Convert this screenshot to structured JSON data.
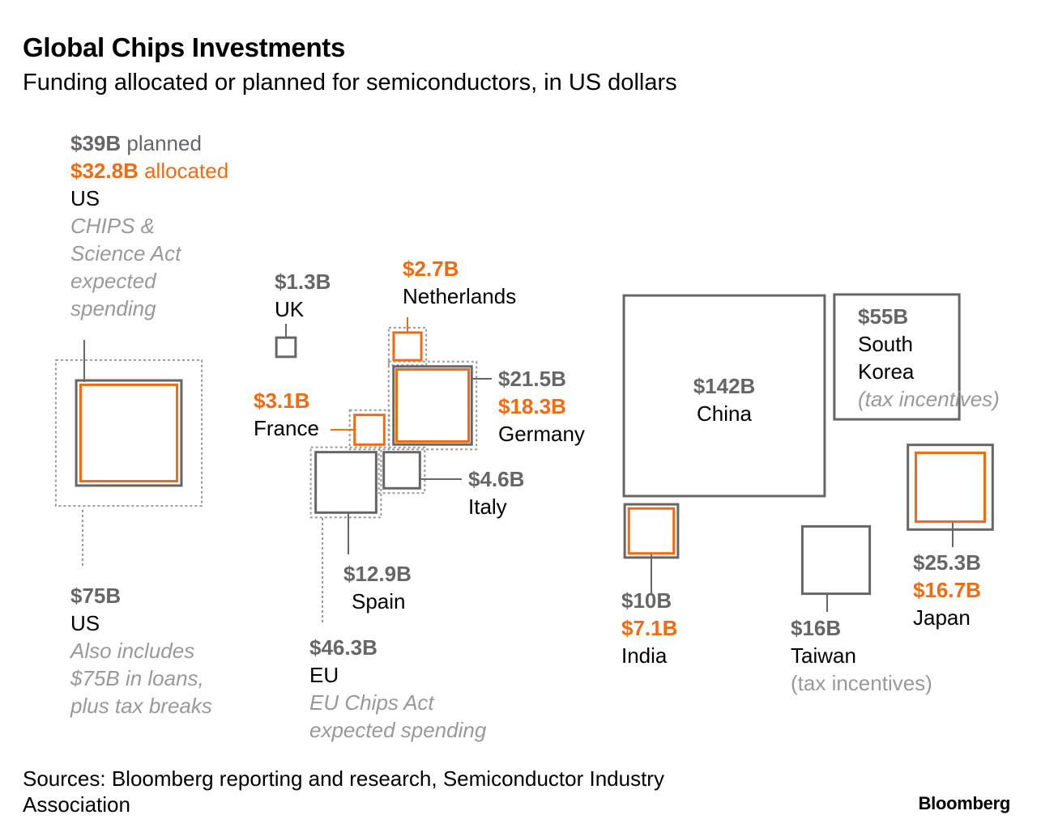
{
  "title": "Global Chips Investments",
  "subtitle": "Funding allocated or planned for semiconductors, in US dollars",
  "source": "Sources: Bloomberg reporting and research, Semiconductor Industry Association",
  "logo": "Bloomberg",
  "colors": {
    "planned": "#666666",
    "allocated": "#f36a10",
    "group": "#999999",
    "text": "#000000"
  },
  "chart_data": {
    "type": "area",
    "title": "Global Chips Investments",
    "subtitle": "Funding allocated or planned for semiconductors, in US dollars",
    "unit": "US$ billions",
    "entries": [
      {
        "id": "us",
        "country": "US",
        "planned": 39,
        "allocated": 32.8,
        "planned_label": "$39B",
        "planned_word": "planned",
        "allocated_label": "$32.8B",
        "allocated_word": "allocated",
        "note": "CHIPS & Science Act expected spending",
        "note_lines": [
          "CHIPS &",
          "Science Act",
          "expected",
          "spending"
        ]
      },
      {
        "id": "us-total",
        "country": "US",
        "total": 75,
        "label": "$75B",
        "note": "Also includes $75B in loans, plus tax breaks",
        "note_lines": [
          "Also includes",
          "$75B in loans,",
          "plus tax breaks"
        ]
      },
      {
        "id": "uk",
        "country": "UK",
        "planned": 1.3,
        "planned_label": "$1.3B"
      },
      {
        "id": "netherlands",
        "country": "Netherlands",
        "allocated": 2.7,
        "allocated_label": "$2.7B"
      },
      {
        "id": "germany",
        "country": "Germany",
        "planned": 21.5,
        "allocated": 18.3,
        "planned_label": "$21.5B",
        "allocated_label": "$18.3B"
      },
      {
        "id": "france",
        "country": "France",
        "allocated": 3.1,
        "allocated_label": "$3.1B"
      },
      {
        "id": "italy",
        "country": "Italy",
        "planned": 4.6,
        "planned_label": "$4.6B"
      },
      {
        "id": "spain",
        "country": "Spain",
        "planned": 12.9,
        "planned_label": "$12.9B"
      },
      {
        "id": "eu",
        "country": "EU",
        "total": 46.3,
        "label": "$46.3B",
        "note": "EU Chips Act expected spending",
        "note_lines": [
          "EU Chips Act",
          "expected spending"
        ]
      },
      {
        "id": "china",
        "country": "China",
        "planned": 142,
        "planned_label": "$142B"
      },
      {
        "id": "south-korea",
        "country": "South Korea",
        "planned": 55,
        "planned_label": "$55B",
        "country_lines": [
          "South",
          "Korea"
        ],
        "note": "(tax incentives)"
      },
      {
        "id": "japan",
        "country": "Japan",
        "planned": 25.3,
        "allocated": 16.7,
        "planned_label": "$25.3B",
        "allocated_label": "$16.7B"
      },
      {
        "id": "india",
        "country": "India",
        "planned": 10,
        "allocated": 7.1,
        "planned_label": "$10B",
        "allocated_label": "$7.1B"
      },
      {
        "id": "taiwan",
        "country": "Taiwan",
        "planned": 16,
        "planned_label": "$16B",
        "note": "(tax incentives)"
      }
    ]
  }
}
